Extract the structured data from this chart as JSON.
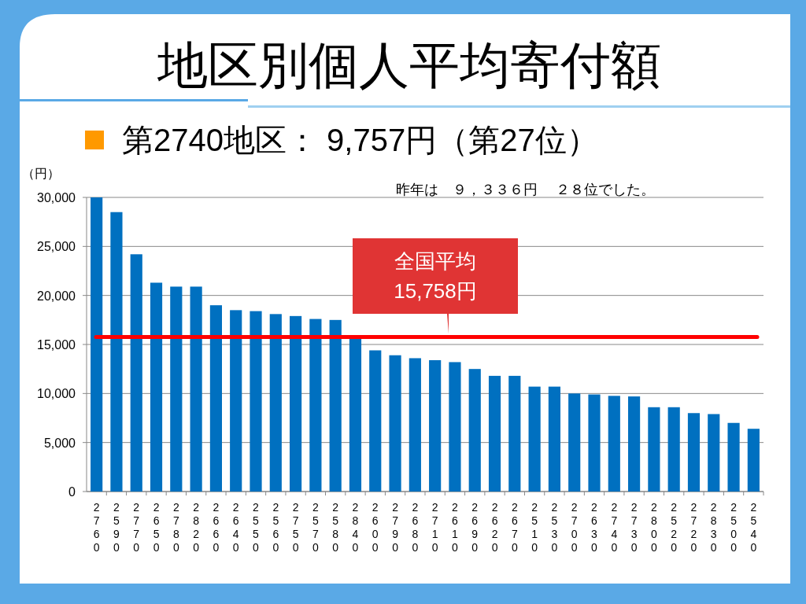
{
  "chart_data": {
    "type": "bar",
    "title": "地区別個人平均寄付額",
    "subtitle": "第2740地区： 9,757円（第27位）",
    "ylabel": "（円）",
    "categories": [
      "2760",
      "2590",
      "2770",
      "2650",
      "2780",
      "2820",
      "2660",
      "2640",
      "2550",
      "2560",
      "2750",
      "2570",
      "2580",
      "2840",
      "2600",
      "2790",
      "2680",
      "2710",
      "2610",
      "2690",
      "2620",
      "2670",
      "2510",
      "2530",
      "2700",
      "2630",
      "2740",
      "2730",
      "2800",
      "2520",
      "2720",
      "2830",
      "2500",
      "2540"
    ],
    "values": [
      30000,
      28500,
      24200,
      21300,
      20900,
      20900,
      19000,
      18500,
      18400,
      18100,
      17900,
      17600,
      17500,
      15700,
      14400,
      13900,
      13600,
      13400,
      13200,
      12500,
      11800,
      11800,
      10700,
      10700,
      10000,
      9900,
      9757,
      9700,
      8600,
      8600,
      8000,
      7900,
      7000,
      6400
    ],
    "color": "#0070c0",
    "ylim": [
      0,
      30000
    ],
    "yticks": [
      {
        "value": 0,
        "label": "0"
      },
      {
        "value": 5000,
        "label": "5,000"
      },
      {
        "value": 10000,
        "label": "10,000"
      },
      {
        "value": 15000,
        "label": "15,000"
      },
      {
        "value": 20000,
        "label": "20,000"
      },
      {
        "value": 25000,
        "label": "25,000"
      },
      {
        "value": 30000,
        "label": "30,000"
      }
    ],
    "grid": "y",
    "ref_lines": [
      {
        "axis": "y",
        "value": 15758,
        "label": "全国平均\n15,758円",
        "color": "#ff0000"
      }
    ],
    "annotations": [
      "昨年は　９，３３６円　 ２８位でした。"
    ]
  }
}
